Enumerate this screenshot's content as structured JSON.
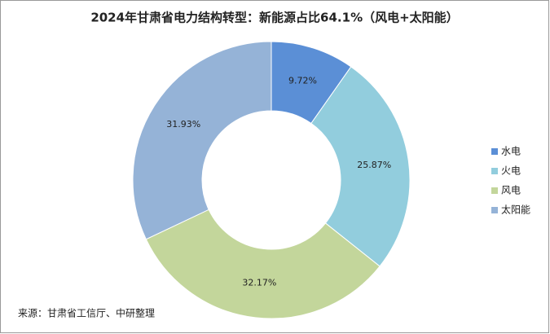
{
  "chart_data": {
    "type": "donut",
    "title": "2024年甘肃省电力结构转型：新能源占比64.1%（风电+太阳能）",
    "categories": [
      "水电",
      "火电",
      "风电",
      "太阳能"
    ],
    "values": [
      9.72,
      25.87,
      32.17,
      31.93
    ],
    "value_labels": [
      "9.72%",
      "25.87%",
      "32.17%",
      "31.93%"
    ],
    "colors": [
      "#5b8fd6",
      "#92cddd",
      "#c3d69b",
      "#95b3d7"
    ],
    "legend": "right",
    "source": "来源：甘肃省工信厅、中研整理"
  }
}
